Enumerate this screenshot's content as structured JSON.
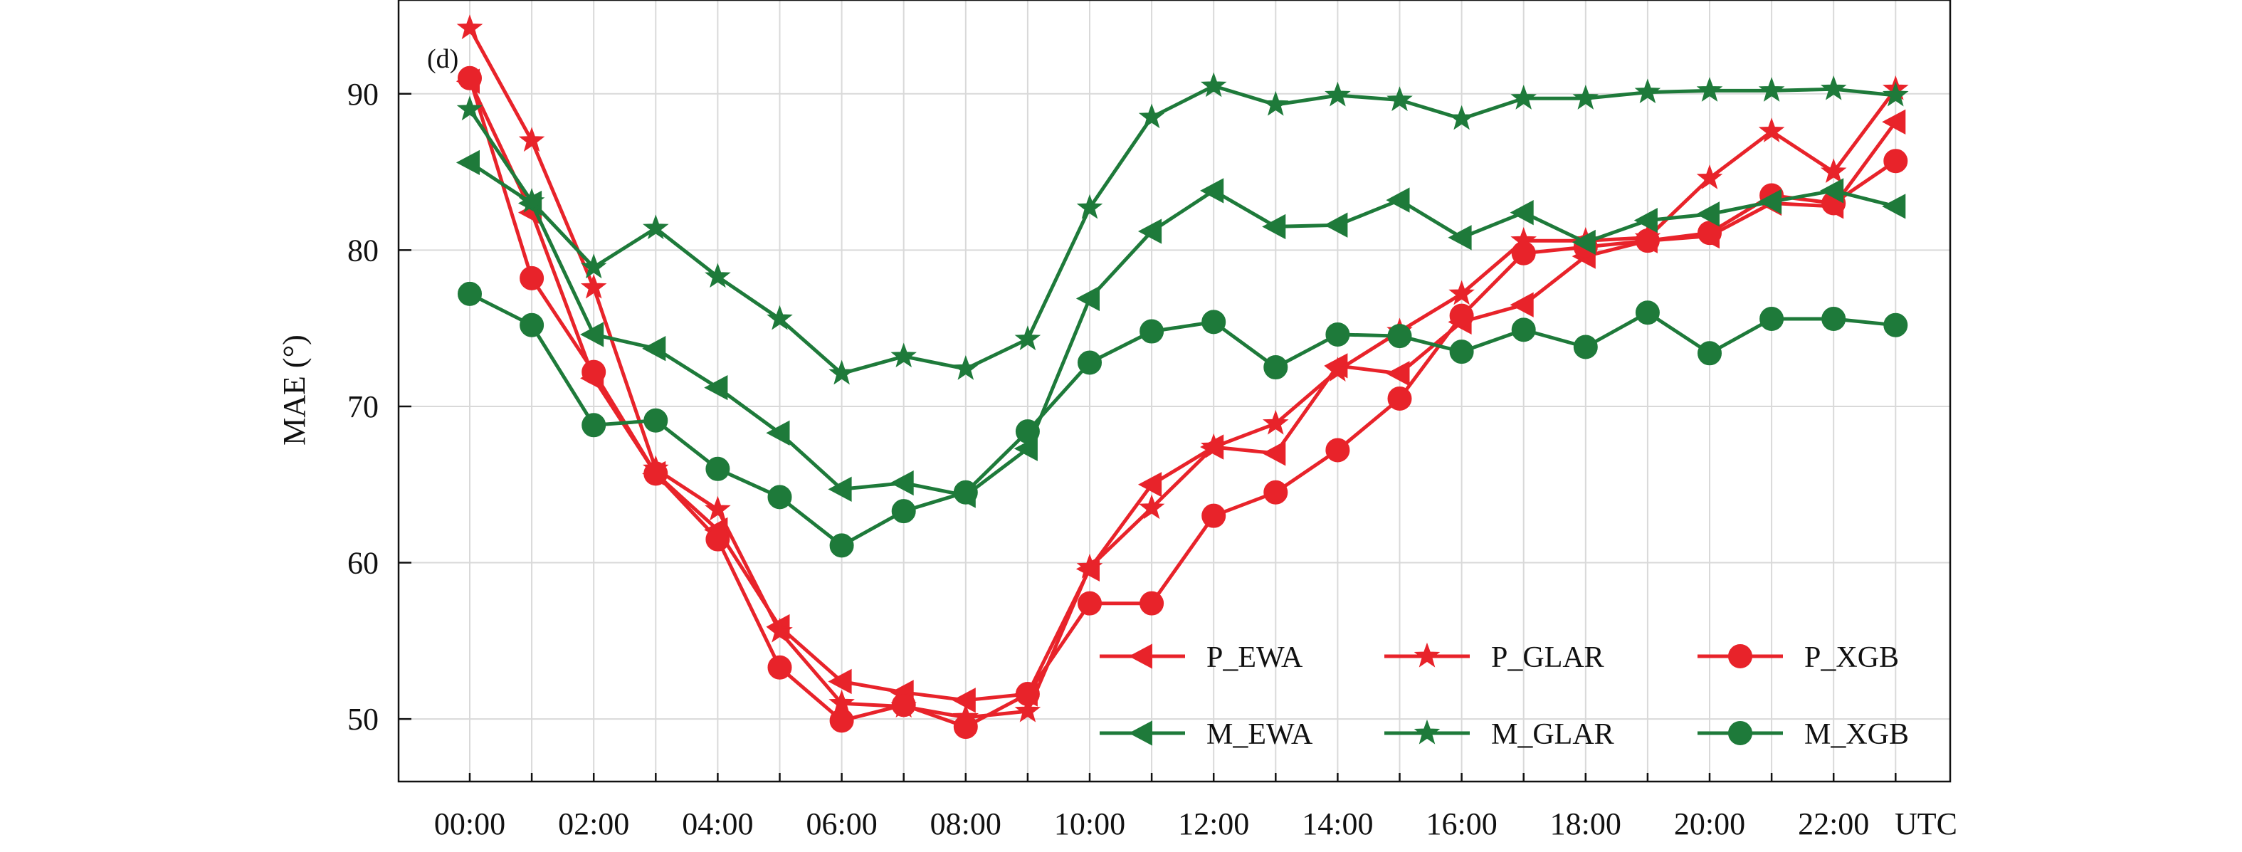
{
  "chart_data": {
    "type": "line",
    "panel_label": "(d)",
    "ylabel": "MAE (°)",
    "x_unit_label": "UTC",
    "x": [
      "00:00",
      "01:00",
      "02:00",
      "03:00",
      "04:00",
      "05:00",
      "06:00",
      "07:00",
      "08:00",
      "09:00",
      "10:00",
      "11:00",
      "12:00",
      "13:00",
      "14:00",
      "15:00",
      "16:00",
      "17:00",
      "18:00",
      "19:00",
      "20:00",
      "21:00",
      "22:00",
      "23:00"
    ],
    "x_tick_labels": [
      "00:00",
      "02:00",
      "04:00",
      "06:00",
      "08:00",
      "10:00",
      "12:00",
      "14:00",
      "16:00",
      "18:00",
      "20:00",
      "22:00"
    ],
    "ylim": [
      46,
      96
    ],
    "y_ticks": [
      50,
      60,
      70,
      80,
      90
    ],
    "grid": true,
    "legend_position": "bottom-right",
    "series": [
      {
        "name": "P_EWA",
        "color": "#e8232a",
        "marker": "triangle-left",
        "values": [
          90.8,
          82.4,
          71.8,
          65.7,
          62.1,
          55.9,
          52.4,
          51.7,
          51.2,
          51.6,
          59.6,
          65.0,
          67.4,
          67.0,
          72.6,
          72.1,
          75.4,
          76.5,
          79.6,
          80.6,
          80.9,
          83.0,
          82.8,
          88.2
        ]
      },
      {
        "name": "P_GLAR",
        "color": "#e8232a",
        "marker": "star",
        "values": [
          94.2,
          87.0,
          77.6,
          66.0,
          63.4,
          55.6,
          51.0,
          50.8,
          50.1,
          50.5,
          59.7,
          63.5,
          67.4,
          68.9,
          72.3,
          74.8,
          77.2,
          80.6,
          80.6,
          80.8,
          84.6,
          87.6,
          85.0,
          90.3
        ]
      },
      {
        "name": "P_XGB",
        "color": "#e8232a",
        "marker": "circle",
        "values": [
          91.0,
          78.2,
          72.2,
          65.7,
          61.5,
          53.3,
          49.9,
          50.9,
          49.5,
          51.6,
          57.4,
          57.4,
          63.0,
          64.5,
          67.2,
          70.5,
          75.8,
          79.8,
          80.2,
          80.6,
          81.1,
          83.5,
          83.0,
          85.7
        ]
      },
      {
        "name": "M_EWA",
        "color": "#1e7a3a",
        "marker": "triangle-left",
        "values": [
          85.6,
          83.0,
          74.6,
          73.7,
          71.2,
          68.3,
          64.7,
          65.1,
          64.3,
          67.3,
          76.9,
          81.2,
          83.8,
          81.5,
          81.6,
          83.2,
          80.8,
          82.4,
          80.5,
          81.9,
          82.3,
          83.1,
          83.8,
          82.8
        ]
      },
      {
        "name": "M_GLAR",
        "color": "#1e7a3a",
        "marker": "star",
        "values": [
          89.0,
          83.1,
          78.9,
          81.4,
          78.3,
          75.6,
          72.1,
          73.2,
          72.4,
          74.3,
          82.7,
          88.5,
          90.5,
          89.3,
          89.9,
          89.6,
          88.4,
          89.7,
          89.7,
          90.1,
          90.2,
          90.2,
          90.3,
          89.9
        ]
      },
      {
        "name": "M_XGB",
        "color": "#1e7a3a",
        "marker": "circle",
        "values": [
          77.2,
          75.2,
          68.8,
          69.1,
          66.0,
          64.2,
          61.1,
          63.3,
          64.5,
          68.4,
          72.8,
          74.8,
          75.4,
          72.5,
          74.6,
          74.5,
          73.5,
          74.9,
          73.8,
          76.0,
          73.4,
          75.6,
          75.6,
          75.2
        ]
      }
    ]
  }
}
